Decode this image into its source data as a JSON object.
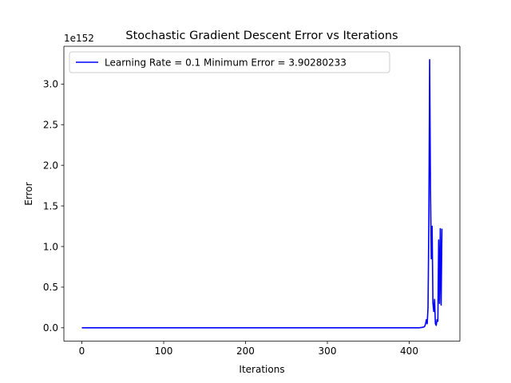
{
  "chart_data": {
    "type": "line",
    "title": "Stochastic Gradient Descent Error vs Iterations",
    "xlabel": "Iterations",
    "ylabel": "Error",
    "y_offset_text": "1e152",
    "xlim": [
      -21.95,
      461.95
    ],
    "ylim": [
      -0.165,
      3.465
    ],
    "x_ticks": [
      0,
      100,
      200,
      300,
      400
    ],
    "x_tick_labels": [
      "0",
      "100",
      "200",
      "300",
      "400"
    ],
    "y_ticks": [
      0.0,
      0.5,
      1.0,
      1.5,
      2.0,
      2.5,
      3.0
    ],
    "y_tick_labels": [
      "0.0",
      "0.5",
      "1.0",
      "1.5",
      "2.0",
      "2.5",
      "3.0"
    ],
    "grid": false,
    "legend": {
      "position": "top-left"
    },
    "series": [
      {
        "name": "Learning Rate = 0.1 Minimum Error = 3.90280233",
        "color": "#0000ff",
        "x": [
          0,
          100,
          200,
          300,
          400,
          412,
          416,
          418,
          419,
          420,
          421,
          422,
          423,
          424,
          425,
          426,
          427,
          428,
          429,
          430,
          431,
          432,
          433,
          434,
          435,
          436,
          437,
          438,
          439,
          440
        ],
        "y": [
          0,
          0,
          0,
          0,
          0,
          0.0,
          0.005,
          0.01,
          0.02,
          0.05,
          0.1,
          0.05,
          0.25,
          1.3,
          3.3,
          1.7,
          0.85,
          1.25,
          0.3,
          0.2,
          0.35,
          0.05,
          0.03,
          0.1,
          0.08,
          1.08,
          0.3,
          1.22,
          0.28,
          1.22
        ]
      }
    ]
  }
}
